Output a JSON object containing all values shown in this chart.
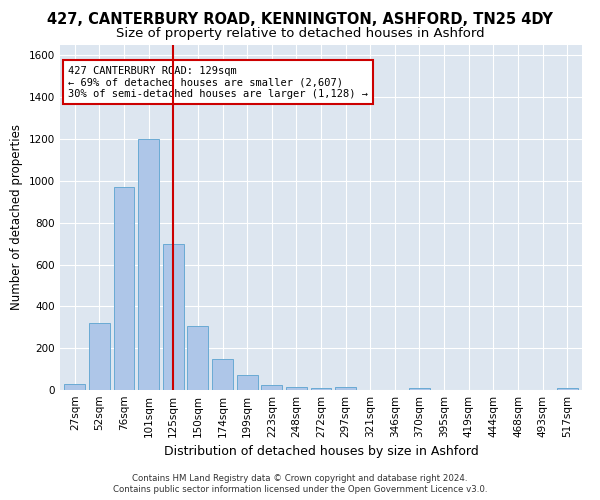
{
  "title1": "427, CANTERBURY ROAD, KENNINGTON, ASHFORD, TN25 4DY",
  "title2": "Size of property relative to detached houses in Ashford",
  "xlabel": "Distribution of detached houses by size in Ashford",
  "ylabel": "Number of detached properties",
  "footer1": "Contains HM Land Registry data © Crown copyright and database right 2024.",
  "footer2": "Contains public sector information licensed under the Open Government Licence v3.0.",
  "bar_categories": [
    "27sqm",
    "52sqm",
    "76sqm",
    "101sqm",
    "125sqm",
    "150sqm",
    "174sqm",
    "199sqm",
    "223sqm",
    "248sqm",
    "272sqm",
    "297sqm",
    "321sqm",
    "346sqm",
    "370sqm",
    "395sqm",
    "419sqm",
    "444sqm",
    "468sqm",
    "493sqm",
    "517sqm"
  ],
  "bar_values": [
    30,
    320,
    970,
    1200,
    700,
    305,
    150,
    70,
    25,
    15,
    10,
    15,
    0,
    0,
    10,
    0,
    0,
    0,
    0,
    0,
    10
  ],
  "bar_color": "#aec6e8",
  "bar_edgecolor": "#6aaad4",
  "highlight_index": 4,
  "highlight_color": "#cc0000",
  "property_label": "427 CANTERBURY ROAD: 129sqm",
  "annotation_line1": "← 69% of detached houses are smaller (2,607)",
  "annotation_line2": "30% of semi-detached houses are larger (1,128) →",
  "annotation_box_color": "#cc0000",
  "vline_x_index": 4,
  "ylim": [
    0,
    1650
  ],
  "yticks": [
    0,
    200,
    400,
    600,
    800,
    1000,
    1200,
    1400,
    1600
  ],
  "background_color": "#dde6f0",
  "grid_color": "#ffffff",
  "fig_background": "#ffffff",
  "title1_fontsize": 10.5,
  "title2_fontsize": 9.5,
  "xlabel_fontsize": 9,
  "ylabel_fontsize": 8.5,
  "tick_fontsize": 7.5,
  "annotation_fontsize": 7.5,
  "footer_fontsize": 6.2
}
